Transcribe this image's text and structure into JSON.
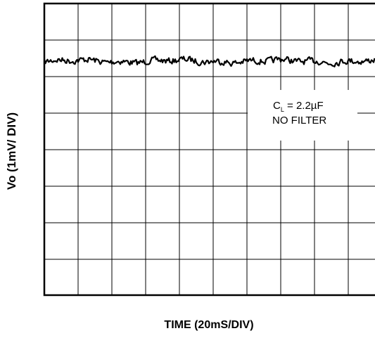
{
  "chart_data": {
    "type": "line",
    "title": "",
    "xlabel": "TIME (20mS/DIV)",
    "ylabel": "Vo (1mV/ DIV)",
    "x_divisions": 10,
    "y_divisions": 8,
    "xlim": [
      0,
      200
    ],
    "ylim": [
      0,
      8
    ],
    "grid": true,
    "annotation": {
      "line1_main": "C",
      "line1_sub": "L",
      "line1_rest": " = 2.2µF",
      "line2": "NO FILTER"
    },
    "series": [
      {
        "trace_level_div": 6.42,
        "noise_amplitude_div": 0.12,
        "description_values": "output noise trace, roughly constant near 6.4 divisions"
      }
    ]
  }
}
